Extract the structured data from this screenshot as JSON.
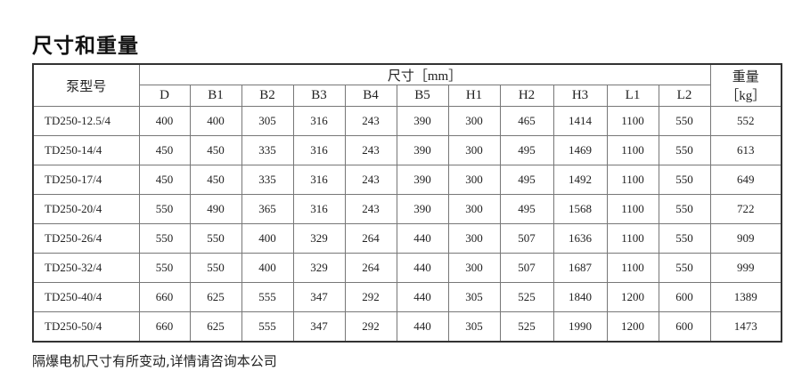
{
  "title": "尺寸和重量",
  "table": {
    "model_header": "泵型号",
    "dimension_header": "尺寸［mm］",
    "weight_header": "重量",
    "weight_unit": "［kg］",
    "columns": [
      "D",
      "B1",
      "B2",
      "B3",
      "B4",
      "B5",
      "H1",
      "H2",
      "H3",
      "L1",
      "L2"
    ],
    "rows": [
      [
        "TD250-12.5/4",
        "400",
        "400",
        "305",
        "316",
        "243",
        "390",
        "300",
        "465",
        "1414",
        "1100",
        "550",
        "552"
      ],
      [
        "TD250-14/4",
        "450",
        "450",
        "335",
        "316",
        "243",
        "390",
        "300",
        "495",
        "1469",
        "1100",
        "550",
        "613"
      ],
      [
        "TD250-17/4",
        "450",
        "450",
        "335",
        "316",
        "243",
        "390",
        "300",
        "495",
        "1492",
        "1100",
        "550",
        "649"
      ],
      [
        "TD250-20/4",
        "550",
        "490",
        "365",
        "316",
        "243",
        "390",
        "300",
        "495",
        "1568",
        "1100",
        "550",
        "722"
      ],
      [
        "TD250-26/4",
        "550",
        "550",
        "400",
        "329",
        "264",
        "440",
        "300",
        "507",
        "1636",
        "1100",
        "550",
        "909"
      ],
      [
        "TD250-32/4",
        "550",
        "550",
        "400",
        "329",
        "264",
        "440",
        "300",
        "507",
        "1687",
        "1100",
        "550",
        "999"
      ],
      [
        "TD250-40/4",
        "660",
        "625",
        "555",
        "347",
        "292",
        "440",
        "305",
        "525",
        "1840",
        "1200",
        "600",
        "1389"
      ],
      [
        "TD250-50/4",
        "660",
        "625",
        "555",
        "347",
        "292",
        "440",
        "305",
        "525",
        "1990",
        "1200",
        "600",
        "1473"
      ]
    ]
  },
  "footer": "隔爆电机尺寸有所变动,详情请咨询本公司"
}
